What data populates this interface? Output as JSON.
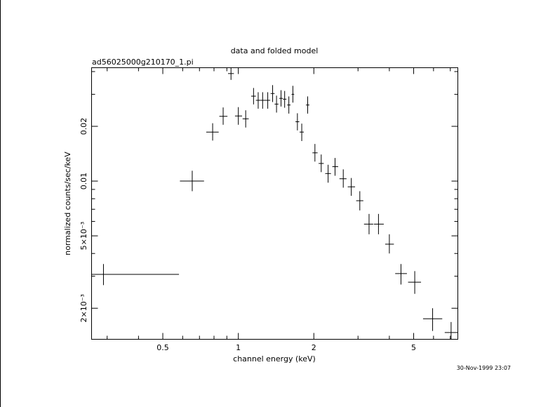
{
  "chart_data": {
    "type": "scatter",
    "title": "data and folded model",
    "subtitle": "ad56025000g210170_1.pi",
    "xlabel": "channel energy (keV)",
    "ylabel": "normalized counts/sec/keV",
    "timestamp": "30-Nov-1999 23:07",
    "xscale": "log",
    "yscale": "log",
    "xlim": [
      0.26,
      7.5
    ],
    "ylim": [
      0.00135,
      0.042
    ],
    "grid": false,
    "x_major_ticks": [
      {
        "value": 0.5,
        "label": "0.5"
      },
      {
        "value": 1,
        "label": "1"
      },
      {
        "value": 2,
        "label": "2"
      },
      {
        "value": 5,
        "label": "5"
      }
    ],
    "x_minor_ticks": [
      0.3,
      0.4,
      0.6,
      0.7,
      0.8,
      0.9,
      3,
      4,
      6,
      7
    ],
    "y_major_ticks": [
      {
        "value": 0.002,
        "label": "2×10⁻³"
      },
      {
        "value": 0.005,
        "label": "5×10⁻³"
      },
      {
        "value": 0.01,
        "label": "0.01"
      },
      {
        "value": 0.02,
        "label": "0.02"
      }
    ],
    "y_minor_ticks": [
      0.003,
      0.004,
      0.006,
      0.007,
      0.008,
      0.009,
      0.03,
      0.04
    ],
    "series": [
      {
        "points": [
          {
            "x": 0.29,
            "xlo": 0.26,
            "xhi": 0.58,
            "y": 0.00307,
            "ylo": 0.00268,
            "yhi": 0.0035
          },
          {
            "x": 0.655,
            "xlo": 0.585,
            "xhi": 0.73,
            "y": 0.01,
            "ylo": 0.0088,
            "yhi": 0.0114
          },
          {
            "x": 0.79,
            "xlo": 0.745,
            "xhi": 0.835,
            "y": 0.0186,
            "ylo": 0.0167,
            "yhi": 0.0208
          },
          {
            "x": 0.87,
            "xlo": 0.84,
            "xhi": 0.905,
            "y": 0.0227,
            "ylo": 0.0204,
            "yhi": 0.0254
          },
          {
            "x": 0.935,
            "xlo": 0.91,
            "xhi": 0.96,
            "y": 0.039,
            "ylo": 0.036,
            "yhi": 0.042
          },
          {
            "x": 1.0,
            "xlo": 0.97,
            "xhi": 1.035,
            "y": 0.0228,
            "ylo": 0.0204,
            "yhi": 0.0255
          },
          {
            "x": 1.07,
            "xlo": 1.04,
            "xhi": 1.1,
            "y": 0.022,
            "ylo": 0.0197,
            "yhi": 0.0245
          },
          {
            "x": 1.15,
            "xlo": 1.125,
            "xhi": 1.175,
            "y": 0.0293,
            "ylo": 0.0264,
            "yhi": 0.0325
          },
          {
            "x": 1.2,
            "xlo": 1.175,
            "xhi": 1.225,
            "y": 0.0278,
            "ylo": 0.025,
            "yhi": 0.0308
          },
          {
            "x": 1.25,
            "xlo": 1.225,
            "xhi": 1.28,
            "y": 0.0278,
            "ylo": 0.025,
            "yhi": 0.0308
          },
          {
            "x": 1.31,
            "xlo": 1.28,
            "xhi": 1.34,
            "y": 0.0278,
            "ylo": 0.025,
            "yhi": 0.0308
          },
          {
            "x": 1.37,
            "xlo": 1.345,
            "xhi": 1.395,
            "y": 0.0303,
            "ylo": 0.0272,
            "yhi": 0.0337
          },
          {
            "x": 1.42,
            "xlo": 1.395,
            "xhi": 1.445,
            "y": 0.0265,
            "ylo": 0.0238,
            "yhi": 0.0295
          },
          {
            "x": 1.48,
            "xlo": 1.455,
            "xhi": 1.505,
            "y": 0.0285,
            "ylo": 0.0257,
            "yhi": 0.0316
          },
          {
            "x": 1.53,
            "xlo": 1.505,
            "xhi": 1.555,
            "y": 0.0282,
            "ylo": 0.0253,
            "yhi": 0.0313
          },
          {
            "x": 1.59,
            "xlo": 1.565,
            "xhi": 1.615,
            "y": 0.0262,
            "ylo": 0.0235,
            "yhi": 0.0292
          },
          {
            "x": 1.65,
            "xlo": 1.63,
            "xhi": 1.67,
            "y": 0.03,
            "ylo": 0.027,
            "yhi": 0.0334
          },
          {
            "x": 1.72,
            "xlo": 1.69,
            "xhi": 1.75,
            "y": 0.0212,
            "ylo": 0.019,
            "yhi": 0.0236
          },
          {
            "x": 1.79,
            "xlo": 1.755,
            "xhi": 1.825,
            "y": 0.0186,
            "ylo": 0.0166,
            "yhi": 0.0207
          },
          {
            "x": 1.89,
            "xlo": 1.86,
            "xhi": 1.92,
            "y": 0.0262,
            "ylo": 0.0235,
            "yhi": 0.0292
          },
          {
            "x": 2.02,
            "xlo": 1.975,
            "xhi": 2.07,
            "y": 0.0143,
            "ylo": 0.0128,
            "yhi": 0.016
          },
          {
            "x": 2.14,
            "xlo": 2.09,
            "xhi": 2.19,
            "y": 0.0125,
            "ylo": 0.0112,
            "yhi": 0.014
          },
          {
            "x": 2.28,
            "xlo": 2.22,
            "xhi": 2.34,
            "y": 0.011,
            "ylo": 0.0098,
            "yhi": 0.0123
          },
          {
            "x": 2.43,
            "xlo": 2.37,
            "xhi": 2.5,
            "y": 0.012,
            "ylo": 0.0107,
            "yhi": 0.0134
          },
          {
            "x": 2.62,
            "xlo": 2.53,
            "xhi": 2.7,
            "y": 0.0103,
            "ylo": 0.0092,
            "yhi": 0.0116
          },
          {
            "x": 2.82,
            "xlo": 2.73,
            "xhi": 2.92,
            "y": 0.0093,
            "ylo": 0.0083,
            "yhi": 0.0104
          },
          {
            "x": 3.05,
            "xlo": 2.95,
            "xhi": 3.15,
            "y": 0.0078,
            "ylo": 0.0069,
            "yhi": 0.0088
          },
          {
            "x": 3.32,
            "xlo": 3.17,
            "xhi": 3.45,
            "y": 0.0058,
            "ylo": 0.0051,
            "yhi": 0.0066
          },
          {
            "x": 3.62,
            "xlo": 3.47,
            "xhi": 3.8,
            "y": 0.0058,
            "ylo": 0.0051,
            "yhi": 0.0066
          },
          {
            "x": 4.0,
            "xlo": 3.85,
            "xhi": 4.17,
            "y": 0.0045,
            "ylo": 0.004,
            "yhi": 0.0051
          },
          {
            "x": 4.45,
            "xlo": 4.22,
            "xhi": 4.7,
            "y": 0.0031,
            "ylo": 0.0027,
            "yhi": 0.0035
          },
          {
            "x": 5.05,
            "xlo": 4.75,
            "xhi": 5.35,
            "y": 0.00278,
            "ylo": 0.0024,
            "yhi": 0.0032
          },
          {
            "x": 5.95,
            "xlo": 5.45,
            "xhi": 6.5,
            "y": 0.00175,
            "ylo": 0.0015,
            "yhi": 0.002
          },
          {
            "x": 7.05,
            "xlo": 6.65,
            "xhi": 7.5,
            "y": 0.00147,
            "ylo": 0.00128,
            "yhi": 0.00168
          }
        ]
      }
    ]
  }
}
